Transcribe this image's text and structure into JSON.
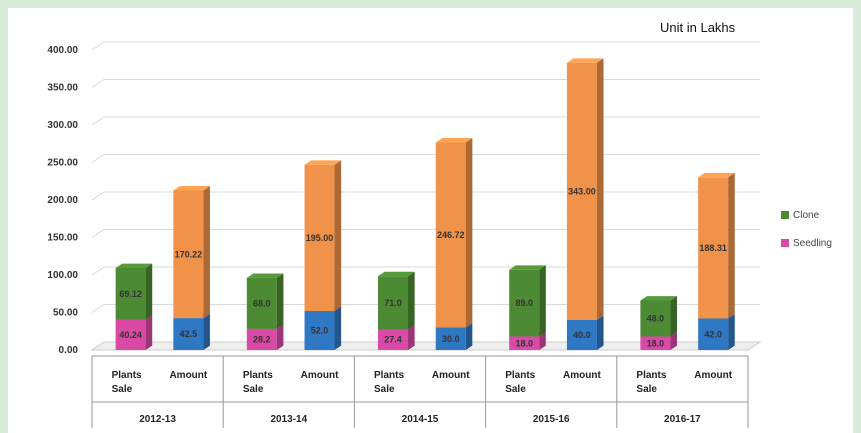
{
  "unit_note": "Unit in Lakhs",
  "colors": {
    "seedling": "#d94aa6",
    "clone": "#4d8a34",
    "amount_low": "#2f78c4",
    "amount_high": "#f0924a"
  },
  "chart_data": {
    "type": "bar",
    "stacked": true,
    "three_d": true,
    "ylim": [
      0,
      400
    ],
    "y_ticks": [
      "0.00",
      "50.00",
      "100.00",
      "150.00",
      "200.00",
      "250.00",
      "300.00",
      "350.00",
      "400.00"
    ],
    "grid": true,
    "legend_position": "right",
    "legend": [
      {
        "name": "Clone",
        "color": "#4d8a34"
      },
      {
        "name": "Seedling",
        "color": "#d94aa6"
      }
    ],
    "years": [
      "2012-13",
      "2013-14",
      "2014-15",
      "2015-16",
      "2016-17"
    ],
    "subcategories": [
      "Plants\nSale",
      "Amount"
    ],
    "plants_sale": {
      "seedling": [
        40.24,
        28.2,
        27.4,
        18.0,
        18.0
      ],
      "clone": [
        69.12,
        68.0,
        71.0,
        89.0,
        48.0
      ],
      "seedling_labels": [
        "40.24",
        "28.2",
        "27.4",
        "18.0",
        "18.0"
      ],
      "clone_labels": [
        "69.12",
        "68.0",
        "71.0",
        "89.0",
        "48.0"
      ]
    },
    "amount": {
      "low": [
        42.5,
        52.0,
        30.0,
        40.0,
        42.0
      ],
      "high": [
        170.22,
        195.0,
        246.72,
        343.0,
        188.31
      ],
      "low_labels": [
        "42.5",
        "52.0",
        "30.0",
        "40.0",
        "42.0"
      ],
      "high_labels": [
        "170.22",
        "195.00",
        "246.72",
        "343.00",
        "188.31"
      ]
    }
  }
}
